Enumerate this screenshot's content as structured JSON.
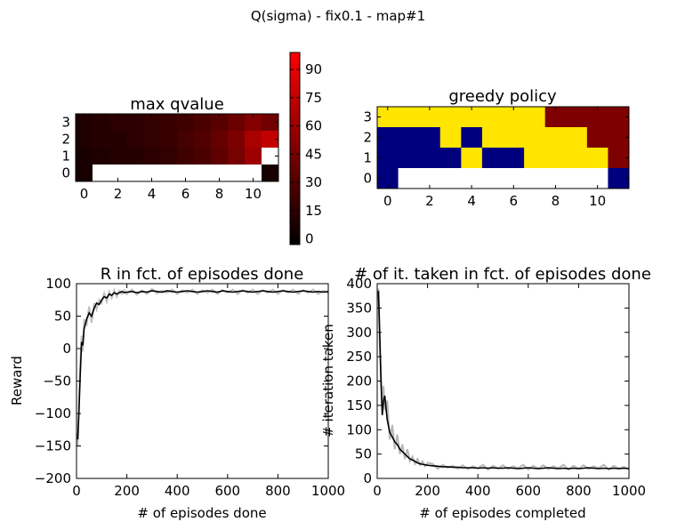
{
  "figure": {
    "suptitle": "Q(sigma) - fix0.1 - map#1"
  },
  "chart_data": [
    {
      "id": "qvalue",
      "type": "heatmap",
      "title": "max qvalue",
      "rows": [
        3,
        2,
        1,
        0
      ],
      "cols": [
        0,
        1,
        2,
        3,
        4,
        5,
        6,
        7,
        8,
        9,
        10,
        11
      ],
      "xticks": [
        0,
        2,
        4,
        6,
        8,
        10
      ],
      "yticks": [
        0,
        1,
        2,
        3
      ],
      "values": [
        [
          2,
          3,
          4,
          4,
          5,
          6,
          7,
          9,
          11,
          14,
          18,
          15
        ],
        [
          2,
          3,
          3,
          4,
          5,
          6,
          8,
          10,
          13,
          17,
          24,
          28
        ],
        [
          1,
          2,
          3,
          3,
          4,
          5,
          7,
          9,
          12,
          16,
          22,
          99
        ],
        [
          1,
          null,
          null,
          null,
          null,
          null,
          null,
          null,
          null,
          null,
          null,
          1
        ]
      ],
      "colorbar": {
        "ticks": [
          0,
          15,
          30,
          45,
          60,
          75,
          90
        ],
        "range": [
          -3,
          99
        ]
      }
    },
    {
      "id": "policy",
      "type": "heatmap",
      "title": "greedy policy",
      "rows": [
        3,
        2,
        1,
        0
      ],
      "cols": [
        0,
        1,
        2,
        3,
        4,
        5,
        6,
        7,
        8,
        9,
        10,
        11
      ],
      "xticks": [
        0,
        2,
        4,
        6,
        8,
        10
      ],
      "yticks": [
        0,
        1,
        2,
        3
      ],
      "palette": [
        "#ffffff",
        "#00007f",
        "#ffe500",
        "#7f0000"
      ],
      "values": [
        [
          2,
          2,
          2,
          2,
          2,
          2,
          2,
          2,
          3,
          3,
          3,
          3
        ],
        [
          1,
          1,
          1,
          2,
          1,
          2,
          2,
          2,
          2,
          2,
          3,
          3
        ],
        [
          1,
          1,
          1,
          1,
          2,
          1,
          1,
          2,
          2,
          2,
          2,
          3
        ],
        [
          1,
          0,
          0,
          0,
          0,
          0,
          0,
          0,
          0,
          0,
          0,
          1
        ]
      ]
    },
    {
      "id": "reward",
      "type": "line",
      "title": "R in fct. of episodes done",
      "xlabel": "# of episodes done",
      "ylabel": "Reward",
      "xlim": [
        0,
        1000
      ],
      "ylim": [
        -200,
        100
      ],
      "xticks": [
        0,
        200,
        400,
        600,
        800,
        1000
      ],
      "yticks": [
        -200,
        -150,
        -100,
        -50,
        0,
        50,
        100
      ],
      "x": [
        5,
        10,
        15,
        20,
        25,
        30,
        40,
        50,
        60,
        70,
        80,
        90,
        100,
        110,
        120,
        130,
        140,
        150,
        160,
        170,
        180,
        190,
        200,
        220,
        240,
        260,
        280,
        300,
        320,
        340,
        360,
        380,
        400,
        420,
        440,
        460,
        480,
        500,
        520,
        540,
        560,
        580,
        600,
        620,
        640,
        660,
        680,
        700,
        720,
        740,
        760,
        780,
        800,
        820,
        840,
        860,
        880,
        900,
        920,
        940,
        960,
        980,
        1000
      ],
      "series": [
        {
          "values": [
            -140,
            -95,
            -40,
            10,
            5,
            30,
            45,
            55,
            50,
            62,
            70,
            68,
            75,
            80,
            78,
            84,
            82,
            86,
            84,
            86,
            88,
            86,
            87,
            88,
            86,
            88,
            87,
            89,
            88,
            87,
            89,
            88,
            87,
            88,
            89,
            88,
            87,
            88,
            89,
            88,
            87,
            89,
            88,
            87,
            88,
            89,
            88,
            87,
            88,
            89,
            88,
            87,
            88,
            89,
            88,
            87,
            88,
            89,
            88,
            87,
            88,
            87,
            88
          ],
          "color": "#000000"
        },
        {
          "values": [
            -150,
            -80,
            -25,
            20,
            -5,
            45,
            35,
            65,
            40,
            70,
            60,
            75,
            70,
            85,
            72,
            88,
            78,
            90,
            80,
            89,
            84,
            90,
            84,
            91,
            83,
            90,
            84,
            92,
            85,
            89,
            86,
            91,
            84,
            90,
            86,
            91,
            84,
            90,
            86,
            91,
            84,
            90,
            86,
            91,
            84,
            90,
            86,
            91,
            84,
            90,
            86,
            91,
            84,
            90,
            86,
            91,
            84,
            90,
            86,
            91,
            84,
            89,
            86
          ],
          "color": "#c0c0c0"
        }
      ]
    },
    {
      "id": "iterations",
      "type": "line",
      "title": "# of it. taken in fct. of episodes done",
      "xlabel": "# of episodes completed",
      "ylabel": "# iteration taken",
      "xlim": [
        0,
        1000
      ],
      "ylim": [
        0,
        400
      ],
      "xticks": [
        0,
        200,
        400,
        600,
        800,
        1000
      ],
      "yticks": [
        0,
        50,
        100,
        150,
        200,
        250,
        300,
        350,
        400
      ],
      "x": [
        5,
        10,
        15,
        20,
        25,
        30,
        40,
        50,
        60,
        70,
        80,
        90,
        100,
        110,
        120,
        130,
        140,
        150,
        160,
        170,
        180,
        190,
        200,
        220,
        240,
        260,
        280,
        300,
        320,
        340,
        360,
        380,
        400,
        420,
        440,
        460,
        480,
        500,
        520,
        540,
        560,
        580,
        600,
        620,
        640,
        660,
        680,
        700,
        720,
        740,
        760,
        780,
        800,
        820,
        840,
        860,
        880,
        900,
        920,
        940,
        960,
        980,
        1000
      ],
      "series": [
        {
          "values": [
            385,
            300,
            200,
            130,
            160,
            170,
            120,
            95,
            85,
            75,
            70,
            60,
            55,
            50,
            45,
            40,
            38,
            35,
            32,
            30,
            29,
            28,
            27,
            26,
            25,
            24,
            24,
            23,
            23,
            22,
            22,
            22,
            21,
            22,
            21,
            22,
            21,
            21,
            22,
            21,
            20,
            21,
            22,
            21,
            20,
            21,
            22,
            21,
            20,
            21,
            20,
            21,
            20,
            21,
            22,
            21,
            20,
            21,
            20,
            21,
            20,
            21,
            20
          ],
          "color": "#000000"
        },
        {
          "values": [
            390,
            280,
            220,
            150,
            190,
            140,
            160,
            80,
            110,
            60,
            90,
            50,
            70,
            40,
            60,
            35,
            45,
            30,
            40,
            28,
            35,
            25,
            32,
            30,
            20,
            28,
            22,
            26,
            20,
            27,
            19,
            25,
            21,
            28,
            18,
            26,
            20,
            27,
            19,
            25,
            21,
            28,
            18,
            26,
            20,
            27,
            19,
            25,
            21,
            28,
            18,
            26,
            20,
            27,
            19,
            25,
            21,
            28,
            18,
            26,
            20,
            24,
            19
          ],
          "color": "#b8b8b8"
        }
      ]
    }
  ]
}
